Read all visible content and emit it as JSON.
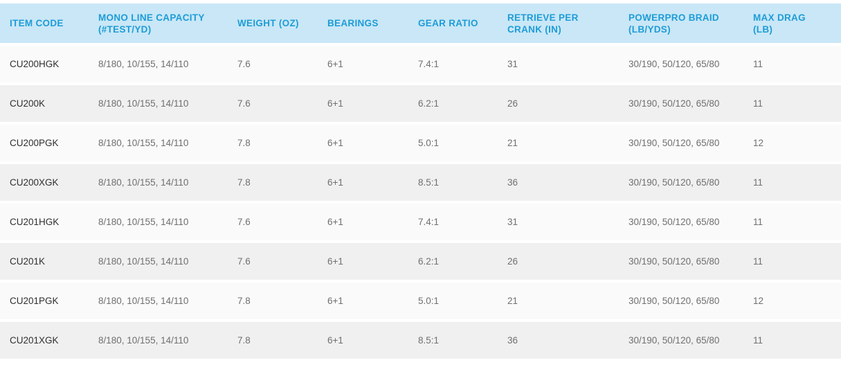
{
  "table": {
    "columns": [
      {
        "key": "item_code",
        "label": "ITEM CODE"
      },
      {
        "key": "mono_line",
        "label": "MONO LINE CAPACITY (#TEST/YD)"
      },
      {
        "key": "weight",
        "label": "WEIGHT (OZ)"
      },
      {
        "key": "bearings",
        "label": "BEARINGS"
      },
      {
        "key": "gear_ratio",
        "label": "GEAR RATIO"
      },
      {
        "key": "retrieve",
        "label": "RETRIEVE PER CRANK (IN)"
      },
      {
        "key": "braid",
        "label": "POWERPRO BRAID (LB/YDS)"
      },
      {
        "key": "max_drag",
        "label": "MAX DRAG (LB)"
      }
    ],
    "rows": [
      [
        "CU200HGK",
        "8/180, 10/155, 14/110",
        "7.6",
        "6+1",
        "7.4:1",
        "31",
        "30/190, 50/120, 65/80",
        "11"
      ],
      [
        "CU200K",
        "8/180, 10/155, 14/110",
        "7.6",
        "6+1",
        "6.2:1",
        "26",
        "30/190, 50/120, 65/80",
        "11"
      ],
      [
        "CU200PGK",
        "8/180, 10/155, 14/110",
        "7.8",
        "6+1",
        "5.0:1",
        "21",
        "30/190, 50/120, 65/80",
        "12"
      ],
      [
        "CU200XGK",
        "8/180, 10/155, 14/110",
        "7.8",
        "6+1",
        "8.5:1",
        "36",
        "30/190, 50/120, 65/80",
        "11"
      ],
      [
        "CU201HGK",
        "8/180, 10/155, 14/110",
        "7.6",
        "6+1",
        "7.4:1",
        "31",
        "30/190, 50/120, 65/80",
        "11"
      ],
      [
        "CU201K",
        "8/180, 10/155, 14/110",
        "7.6",
        "6+1",
        "6.2:1",
        "26",
        "30/190, 50/120, 65/80",
        "11"
      ],
      [
        "CU201PGK",
        "8/180, 10/155, 14/110",
        "7.8",
        "6+1",
        "5.0:1",
        "21",
        "30/190, 50/120, 65/80",
        "12"
      ],
      [
        "CU201XGK",
        "8/180, 10/155, 14/110",
        "7.8",
        "6+1",
        "8.5:1",
        "36",
        "30/190, 50/120, 65/80",
        "11"
      ]
    ]
  },
  "colors": {
    "header_bg": "#c9e7f6",
    "header_text": "#1e9cd8",
    "row_odd_bg": "#fafafa",
    "row_even_bg": "#f0f0f0",
    "separator": "#ffffff",
    "cell_text": "#6f6f6f",
    "item_code_text": "#2f2f2f"
  }
}
